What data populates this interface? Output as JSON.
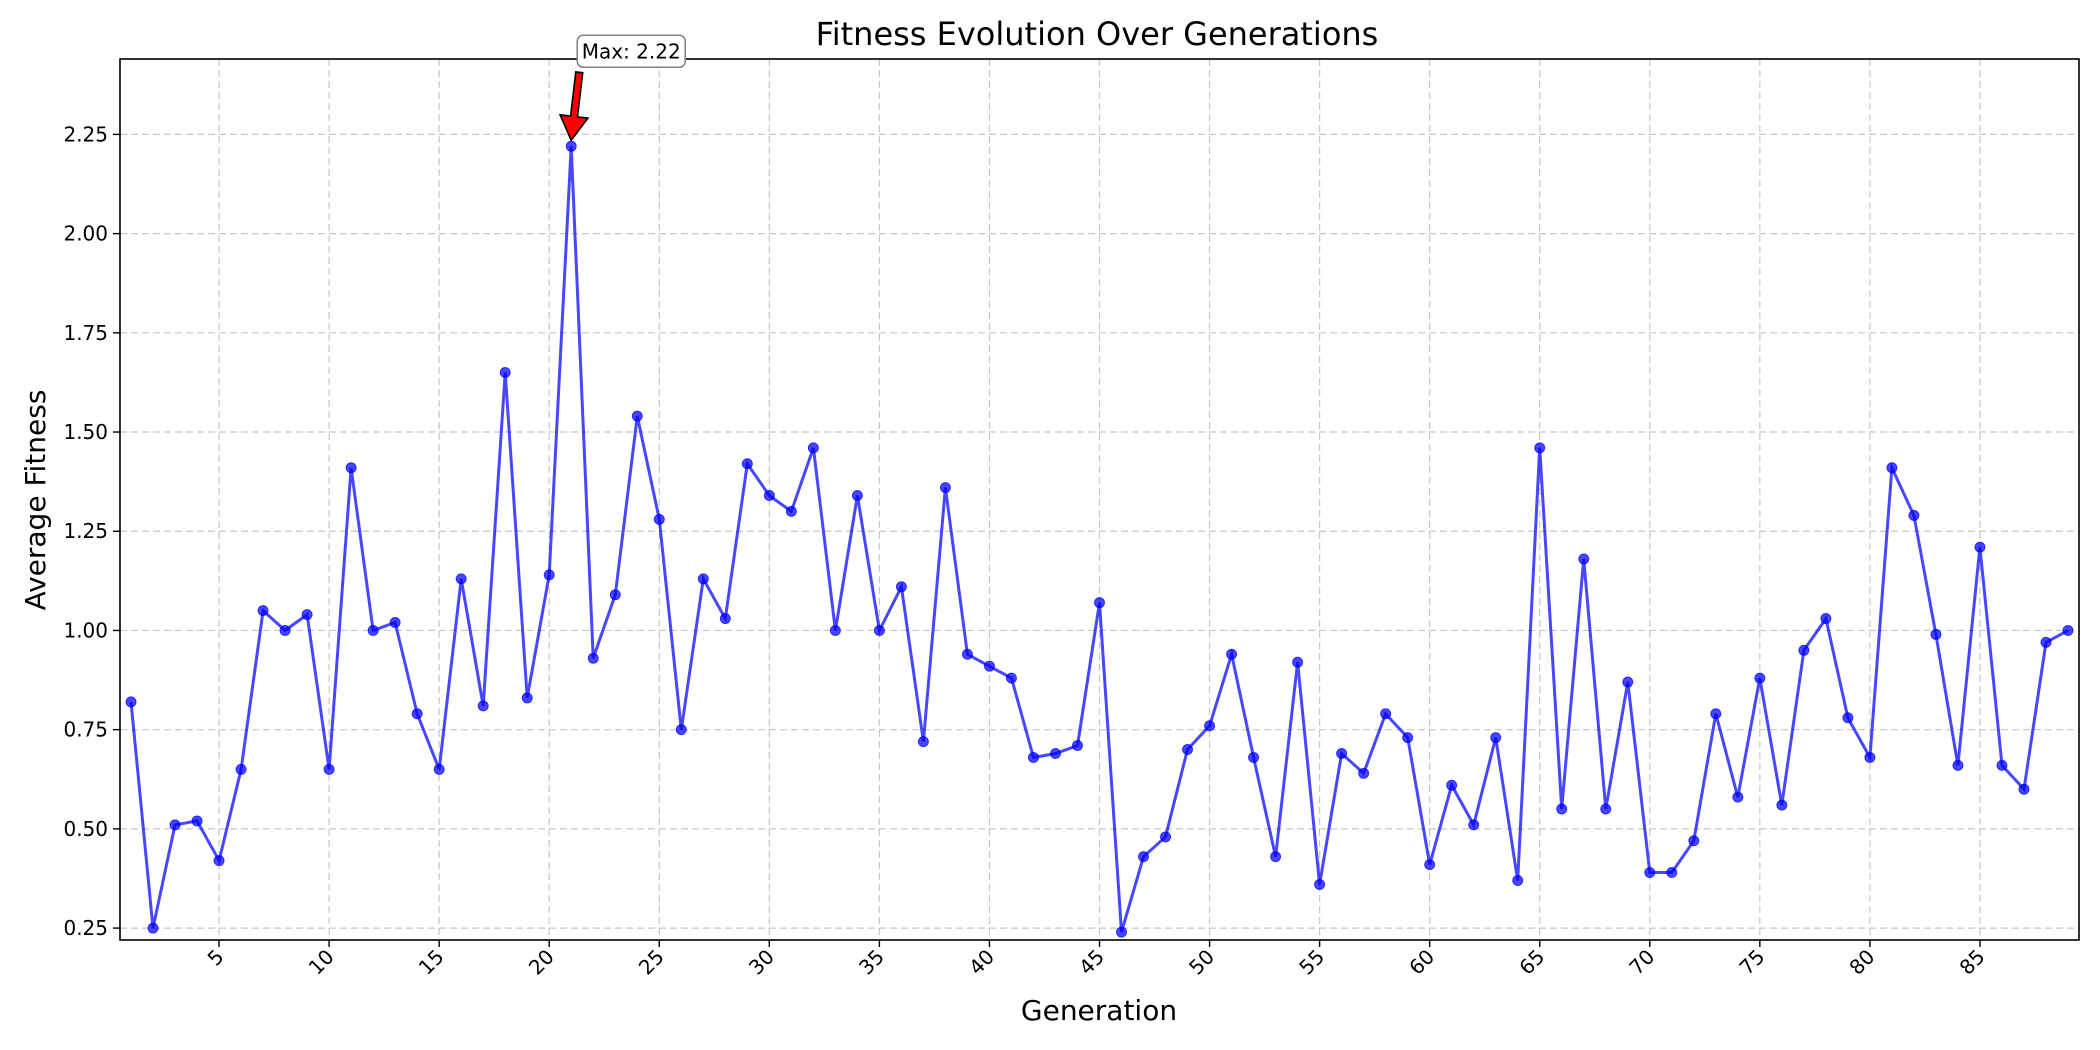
{
  "chart_data": {
    "type": "line",
    "title": "Fitness Evolution Over Generations",
    "xlabel": "Generation",
    "ylabel": "Average Fitness",
    "xlim": [
      0.5,
      89.5
    ],
    "ylim": [
      0.22,
      2.44
    ],
    "x_ticks": [
      5,
      10,
      15,
      20,
      25,
      30,
      35,
      40,
      45,
      50,
      55,
      60,
      65,
      70,
      75,
      80,
      85
    ],
    "y_ticks": [
      0.25,
      0.5,
      0.75,
      1.0,
      1.25,
      1.5,
      1.75,
      2.0,
      2.25
    ],
    "y_tick_labels": [
      "0.25",
      "0.50",
      "0.75",
      "1.00",
      "1.25",
      "1.50",
      "1.75",
      "2.00",
      "2.25"
    ],
    "grid": true,
    "series": [
      {
        "color": "#0000ff",
        "x": [
          1,
          2,
          3,
          4,
          5,
          6,
          7,
          8,
          9,
          10,
          11,
          12,
          13,
          14,
          15,
          16,
          17,
          18,
          19,
          20,
          21,
          22,
          23,
          24,
          25,
          26,
          27,
          28,
          29,
          30,
          31,
          32,
          33,
          34,
          35,
          36,
          37,
          38,
          39,
          40,
          41,
          42,
          43,
          44,
          45,
          46,
          47,
          48,
          49,
          50,
          51,
          52,
          53,
          54,
          55,
          56,
          57,
          58,
          59,
          60,
          61,
          62,
          63,
          64,
          65,
          66,
          67,
          68,
          69,
          70,
          71,
          72,
          73,
          74,
          75,
          76,
          77,
          78,
          79,
          80,
          81,
          82,
          83,
          84,
          85,
          86,
          87,
          88,
          89
        ],
        "values": [
          0.82,
          0.25,
          0.51,
          0.52,
          0.42,
          0.65,
          1.05,
          1.0,
          1.04,
          0.65,
          1.41,
          1.0,
          1.02,
          0.79,
          0.65,
          1.13,
          0.81,
          1.65,
          0.83,
          1.14,
          2.22,
          0.93,
          1.09,
          1.54,
          1.28,
          0.75,
          1.13,
          1.03,
          1.42,
          1.34,
          1.3,
          1.46,
          1.0,
          1.34,
          1.0,
          1.11,
          0.72,
          1.36,
          0.94,
          0.91,
          0.88,
          0.68,
          0.69,
          0.71,
          1.07,
          0.24,
          0.43,
          0.48,
          0.7,
          0.76,
          0.94,
          0.68,
          0.43,
          0.92,
          0.36,
          0.69,
          0.64,
          0.79,
          0.73,
          0.41,
          0.61,
          0.51,
          0.73,
          0.37,
          1.46,
          0.55,
          1.18,
          0.55,
          0.87,
          0.39,
          0.39,
          0.47,
          0.79,
          0.58,
          0.88,
          0.56,
          0.95,
          1.03,
          0.78,
          0.68,
          1.41,
          1.29,
          0.99,
          0.66,
          1.21,
          0.66,
          0.6,
          0.97,
          1.0
        ]
      }
    ],
    "annotation": {
      "text": "Max: 2.22",
      "x": 21,
      "y": 2.22,
      "arrow_color": "#ff0000"
    }
  }
}
